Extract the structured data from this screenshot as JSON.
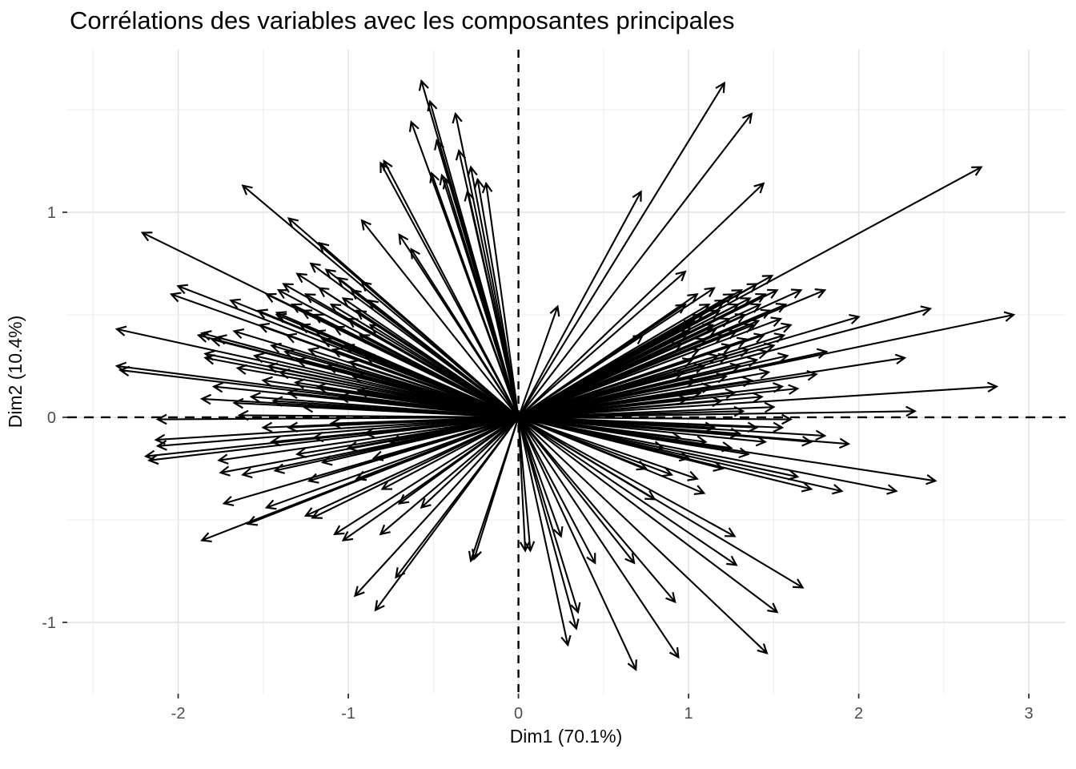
{
  "chart_data": {
    "type": "scatter",
    "mark": "arrows-from-origin",
    "title": "Corrélations des variables avec les composantes principales",
    "xlabel": "Dim1 (70.1%)",
    "ylabel": "Dim2 (10.4%)",
    "legend": "none",
    "grid": "on",
    "x_axis": {
      "lim": [
        -2.652,
        3.216
      ],
      "ticks": [
        -2,
        -1,
        0,
        1,
        2,
        3
      ],
      "minor_ticks": [
        -2.5,
        -1.5,
        -0.5,
        0.5,
        1.5,
        2.5
      ]
    },
    "y_axis": {
      "lim": [
        -1.348,
        1.793
      ],
      "ticks": [
        -1,
        0,
        1
      ],
      "minor_ticks": [
        -0.5,
        0.5,
        1.5
      ]
    },
    "reference_lines": {
      "vertical_x": 0,
      "horizontal_y": 0,
      "style": "dashed"
    },
    "colors": {
      "arrow": "#000000",
      "grid_major": "#e4e4e4",
      "grid_minor": "#ececec",
      "dashed_line": "#000000",
      "tick_mark": "#333333",
      "axis_text": "#4d4d4d",
      "title_text": "#000000",
      "background": "#ffffff"
    },
    "arrows": [
      [
        2.91,
        0.5
      ],
      [
        2.81,
        0.15
      ],
      [
        2.72,
        1.22
      ],
      [
        2.45,
        -0.31
      ],
      [
        2.42,
        0.53
      ],
      [
        2.33,
        0.03
      ],
      [
        2.27,
        0.29
      ],
      [
        2.22,
        -0.36
      ],
      [
        2.0,
        0.49
      ],
      [
        1.94,
        -0.13
      ],
      [
        1.9,
        -0.36
      ],
      [
        1.81,
        0.32
      ],
      [
        1.8,
        0.62
      ],
      [
        1.8,
        -0.09
      ],
      [
        1.75,
        0.21
      ],
      [
        1.72,
        -0.12
      ],
      [
        1.72,
        -0.35
      ],
      [
        1.67,
        -0.83
      ],
      [
        1.66,
        0.62
      ],
      [
        1.64,
        0.14
      ],
      [
        1.64,
        -0.29
      ],
      [
        1.6,
        -0.01
      ],
      [
        1.52,
        -0.95
      ],
      [
        1.49,
        0.69
      ],
      [
        1.21,
        1.63
      ],
      [
        1.37,
        1.48
      ],
      [
        1.44,
        1.14
      ],
      [
        0.98,
        0.71
      ],
      [
        0.72,
        1.1
      ],
      [
        0.73,
        0.4
      ],
      [
        0.23,
        0.54
      ],
      [
        1.46,
        -1.15
      ],
      [
        1.28,
        -0.72
      ],
      [
        1.27,
        -0.58
      ],
      [
        1.09,
        -0.37
      ],
      [
        0.94,
        -1.17
      ],
      [
        0.92,
        -0.9
      ],
      [
        0.69,
        -1.23
      ],
      [
        0.68,
        -0.71
      ],
      [
        0.45,
        -0.71
      ],
      [
        0.35,
        -0.95
      ],
      [
        0.34,
        -1.03
      ],
      [
        0.29,
        -1.11
      ],
      [
        0.25,
        -0.58
      ],
      [
        0.07,
        -0.65
      ],
      [
        0.04,
        -0.65
      ],
      [
        -0.26,
        -0.69
      ],
      [
        -0.28,
        -0.7
      ],
      [
        -0.57,
        -0.44
      ],
      [
        -0.7,
        -0.42
      ],
      [
        -0.72,
        -0.78
      ],
      [
        -0.84,
        -0.94
      ],
      [
        -0.96,
        -0.87
      ],
      [
        -1.03,
        -0.6
      ],
      [
        -1.08,
        -0.57
      ],
      [
        -0.81,
        -0.57
      ],
      [
        -1.21,
        -0.49
      ],
      [
        -1.25,
        -0.48
      ],
      [
        -1.23,
        -0.31
      ],
      [
        -2.36,
        0.43
      ],
      [
        -2.36,
        0.25
      ],
      [
        -2.34,
        0.23
      ],
      [
        -2.21,
        0.9
      ],
      [
        -2.12,
        -0.01
      ],
      [
        -2.12,
        -0.14
      ],
      [
        -2.17,
        -0.21
      ],
      [
        -2.19,
        -0.19
      ],
      [
        -2.13,
        -0.11
      ],
      [
        -2.04,
        0.6
      ],
      [
        -2.0,
        0.64
      ],
      [
        -1.88,
        0.4
      ],
      [
        -1.86,
        0.41
      ],
      [
        -1.86,
        0.09
      ],
      [
        -1.86,
        -0.6
      ],
      [
        -1.84,
        0.31
      ],
      [
        -1.84,
        0.29
      ],
      [
        -1.8,
        0.38
      ],
      [
        -1.79,
        0.15
      ],
      [
        -1.77,
        0.39
      ],
      [
        -1.76,
        -0.21
      ],
      [
        -1.75,
        -0.27
      ],
      [
        -1.73,
        -0.42
      ],
      [
        -1.69,
        0.57
      ],
      [
        -1.67,
        0.42
      ],
      [
        -1.67,
        0.07
      ],
      [
        -1.65,
        0.24
      ],
      [
        -1.64,
        0.01
      ],
      [
        -1.62,
        -0.28
      ],
      [
        -1.62,
        1.13
      ],
      [
        -1.59,
        -0.52
      ],
      [
        -1.53,
        0.52
      ],
      [
        -1.48,
        -0.44
      ],
      [
        -1.43,
        -0.26
      ],
      [
        -1.42,
        0.51
      ],
      [
        -0.57,
        1.64
      ],
      [
        -0.52,
        1.54
      ],
      [
        -0.63,
        1.44
      ],
      [
        -0.37,
        1.48
      ],
      [
        -0.48,
        1.35
      ],
      [
        -0.35,
        1.3
      ],
      [
        -0.28,
        1.22
      ],
      [
        -0.79,
        1.25
      ],
      [
        -0.81,
        1.24
      ],
      [
        -0.51,
        1.19
      ],
      [
        -0.45,
        1.18
      ],
      [
        -0.43,
        1.16
      ],
      [
        -0.24,
        1.16
      ],
      [
        -0.19,
        1.14
      ],
      [
        -0.3,
        1.1
      ],
      [
        -0.92,
        0.96
      ],
      [
        -1.35,
        0.97
      ],
      [
        -0.7,
        0.89
      ],
      [
        -0.63,
        0.82
      ],
      [
        -1.17,
        0.85
      ],
      [
        -1.57,
        0.1
      ],
      [
        -1.55,
        0.3
      ],
      [
        -1.52,
        0.45
      ],
      [
        -1.5,
        0.18
      ],
      [
        -1.48,
        0.6
      ],
      [
        -1.47,
        0.25
      ],
      [
        -1.45,
        0.35
      ],
      [
        -1.44,
        0.08
      ],
      [
        -1.42,
        0.5
      ],
      [
        -1.41,
        0.62
      ],
      [
        -1.4,
        0.22
      ],
      [
        -1.38,
        0.65
      ],
      [
        -1.37,
        0.32
      ],
      [
        -1.36,
        0.4
      ],
      [
        -1.35,
        0.12
      ],
      [
        -1.33,
        0.55
      ],
      [
        -1.31,
        0.17
      ],
      [
        -1.3,
        0.28
      ],
      [
        -1.3,
        0.7
      ],
      [
        -1.28,
        0.45
      ],
      [
        -1.27,
        0.52
      ],
      [
        -1.26,
        0.05
      ],
      [
        -1.25,
        0.6
      ],
      [
        -1.23,
        0.33
      ],
      [
        -1.22,
        0.75
      ],
      [
        -1.2,
        0.5
      ],
      [
        -1.19,
        0.42
      ],
      [
        -1.18,
        0.15
      ],
      [
        -1.17,
        0.63
      ],
      [
        -1.15,
        0.38
      ],
      [
        -1.13,
        0.72
      ],
      [
        -1.12,
        0.25
      ],
      [
        -1.1,
        0.55
      ],
      [
        -1.09,
        0.33
      ],
      [
        -1.08,
        0.44
      ],
      [
        -1.06,
        0.68
      ],
      [
        -1.05,
        0.1
      ],
      [
        -1.03,
        0.58
      ],
      [
        -1.02,
        0.35
      ],
      [
        -1.0,
        0.48
      ],
      [
        -0.99,
        0.27
      ],
      [
        -0.98,
        0.62
      ],
      [
        -0.97,
        0.2
      ],
      [
        -0.95,
        0.52
      ],
      [
        -0.94,
        0.13
      ],
      [
        -0.93,
        0.4
      ],
      [
        -0.92,
        0.66
      ],
      [
        -0.9,
        0.3
      ],
      [
        -0.88,
        0.57
      ],
      [
        -0.87,
        0.45
      ],
      [
        -1.5,
        -0.05
      ],
      [
        -1.45,
        -0.12
      ],
      [
        -1.35,
        -0.05
      ],
      [
        -1.3,
        -0.18
      ],
      [
        -1.2,
        -0.1
      ],
      [
        -1.15,
        -0.22
      ],
      [
        -1.1,
        -0.03
      ],
      [
        -1.0,
        -0.15
      ],
      [
        -0.95,
        -0.3
      ],
      [
        -0.9,
        -0.08
      ],
      [
        -0.85,
        -0.2
      ],
      [
        -0.8,
        -0.35
      ],
      [
        -0.75,
        -0.12
      ],
      [
        1.6,
        0.45
      ],
      [
        1.58,
        0.3
      ],
      [
        1.57,
        0.55
      ],
      [
        1.56,
        0.4
      ],
      [
        1.55,
        0.15
      ],
      [
        1.54,
        0.48
      ],
      [
        1.52,
        0.62
      ],
      [
        1.5,
        0.35
      ],
      [
        1.5,
        0.05
      ],
      [
        1.48,
        0.52
      ],
      [
        1.47,
        0.22
      ],
      [
        1.46,
        0.32
      ],
      [
        1.45,
        0.6
      ],
      [
        1.44,
        0.4
      ],
      [
        1.43,
        0.1
      ],
      [
        1.42,
        0.55
      ],
      [
        1.41,
        0.47
      ],
      [
        1.4,
        0.28
      ],
      [
        1.4,
        0.65
      ],
      [
        1.38,
        0.45
      ],
      [
        1.37,
        0.18
      ],
      [
        1.36,
        0.58
      ],
      [
        1.35,
        0.33
      ],
      [
        1.34,
        0.38
      ],
      [
        1.33,
        0.5
      ],
      [
        1.32,
        0.03
      ],
      [
        1.31,
        0.62
      ],
      [
        1.3,
        0.25
      ],
      [
        1.29,
        0.55
      ],
      [
        1.28,
        0.42
      ],
      [
        1.27,
        0.12
      ],
      [
        1.26,
        0.6
      ],
      [
        1.25,
        0.35
      ],
      [
        1.24,
        0.48
      ],
      [
        1.23,
        0.3
      ],
      [
        1.22,
        0.2
      ],
      [
        1.21,
        0.57
      ],
      [
        1.2,
        0.4
      ],
      [
        1.19,
        0.08
      ],
      [
        1.18,
        0.52
      ],
      [
        1.17,
        0.3
      ],
      [
        1.16,
        0.43
      ],
      [
        1.15,
        0.63
      ],
      [
        1.14,
        0.45
      ],
      [
        1.13,
        0.15
      ],
      [
        1.12,
        0.55
      ],
      [
        1.1,
        0.38
      ],
      [
        1.09,
        0.25
      ],
      [
        1.08,
        0.5
      ],
      [
        1.07,
        0.12
      ],
      [
        1.06,
        0.33
      ],
      [
        1.05,
        0.6
      ],
      [
        1.04,
        0.18
      ],
      [
        1.03,
        0.47
      ],
      [
        1.02,
        0.28
      ],
      [
        1.0,
        0.42
      ],
      [
        0.99,
        0.09
      ],
      [
        0.98,
        0.55
      ],
      [
        0.97,
        0.22
      ],
      [
        0.96,
        0.36
      ],
      [
        1.55,
        -0.05
      ],
      [
        1.45,
        -0.12
      ],
      [
        1.4,
        -0.05
      ],
      [
        1.35,
        -0.18
      ],
      [
        1.3,
        -0.08
      ],
      [
        1.25,
        -0.15
      ],
      [
        1.2,
        -0.25
      ],
      [
        1.15,
        -0.05
      ],
      [
        1.1,
        -0.12
      ],
      [
        1.05,
        -0.3
      ],
      [
        1.0,
        -0.2
      ],
      [
        0.95,
        -0.1
      ],
      [
        0.9,
        -0.28
      ],
      [
        0.85,
        -0.15
      ],
      [
        0.8,
        -0.4
      ],
      [
        0.75,
        -0.25
      ]
    ]
  }
}
